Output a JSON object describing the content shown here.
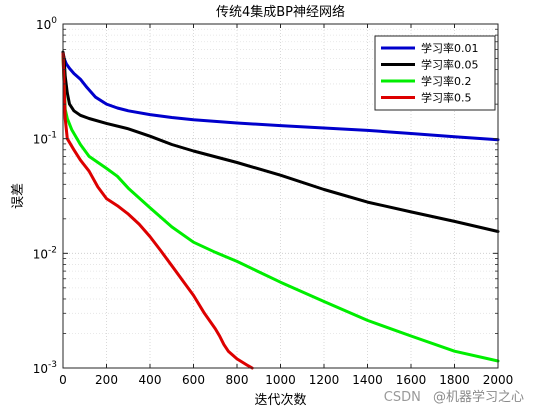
{
  "chart_data": {
    "type": "line",
    "title": "传统4集成BP神经网络",
    "xlabel": "迭代次数",
    "ylabel": "误差",
    "xlim": [
      0,
      2000
    ],
    "ylim": [
      0.001,
      1
    ],
    "yscale": "log",
    "grid": true,
    "legend_position": "top-right",
    "x_ticks": [
      0,
      200,
      400,
      600,
      800,
      1000,
      1200,
      1400,
      1600,
      1800,
      2000
    ],
    "y_ticks": [
      {
        "value": 0.001,
        "base": "10",
        "exp": "-3"
      },
      {
        "value": 0.01,
        "base": "10",
        "exp": "-2"
      },
      {
        "value": 0.1,
        "base": "10",
        "exp": "-1"
      },
      {
        "value": 1,
        "base": "10",
        "exp": "0"
      }
    ],
    "series": [
      {
        "name": "学习率0.01",
        "color": "#0000cc",
        "x": [
          0,
          5,
          15,
          30,
          50,
          80,
          110,
          150,
          200,
          250,
          300,
          400,
          500,
          600,
          800,
          1000,
          1200,
          1400,
          1600,
          1800,
          2000
        ],
        "y": [
          0.56,
          0.5,
          0.45,
          0.41,
          0.37,
          0.33,
          0.28,
          0.23,
          0.2,
          0.185,
          0.175,
          0.162,
          0.153,
          0.146,
          0.137,
          0.13,
          0.124,
          0.118,
          0.111,
          0.104,
          0.098
        ]
      },
      {
        "name": "学习率0.05",
        "color": "#000000",
        "x": [
          0,
          5,
          10,
          20,
          30,
          50,
          80,
          120,
          200,
          300,
          400,
          500,
          600,
          800,
          1000,
          1200,
          1400,
          1600,
          1800,
          2000
        ],
        "y": [
          0.57,
          0.5,
          0.35,
          0.25,
          0.2,
          0.175,
          0.16,
          0.15,
          0.136,
          0.122,
          0.105,
          0.089,
          0.078,
          0.062,
          0.048,
          0.036,
          0.028,
          0.023,
          0.019,
          0.0155
        ]
      },
      {
        "name": "学习率0.2",
        "color": "#00ee00",
        "x": [
          0,
          5,
          10,
          20,
          40,
          80,
          120,
          200,
          250,
          300,
          400,
          500,
          600,
          700,
          800,
          1000,
          1200,
          1400,
          1600,
          1800,
          2000
        ],
        "y": [
          0.52,
          0.3,
          0.18,
          0.15,
          0.12,
          0.089,
          0.07,
          0.055,
          0.047,
          0.037,
          0.025,
          0.017,
          0.0125,
          0.0102,
          0.0085,
          0.0056,
          0.0038,
          0.0026,
          0.0019,
          0.0014,
          0.00115
        ]
      },
      {
        "name": "学习率0.5",
        "color": "#dd0000",
        "x": [
          0,
          5,
          10,
          20,
          50,
          80,
          120,
          160,
          200,
          250,
          300,
          350,
          400,
          450,
          500,
          550,
          600,
          650,
          700,
          720,
          740,
          760,
          800,
          850,
          870
        ],
        "y": [
          0.55,
          0.3,
          0.15,
          0.1,
          0.08,
          0.065,
          0.052,
          0.038,
          0.03,
          0.026,
          0.022,
          0.018,
          0.014,
          0.0105,
          0.0078,
          0.0058,
          0.0043,
          0.003,
          0.0022,
          0.0019,
          0.0016,
          0.0014,
          0.0012,
          0.00105,
          0.001
        ]
      }
    ]
  },
  "watermark": {
    "site": "CSDN",
    "author": "@机器学习之心"
  }
}
